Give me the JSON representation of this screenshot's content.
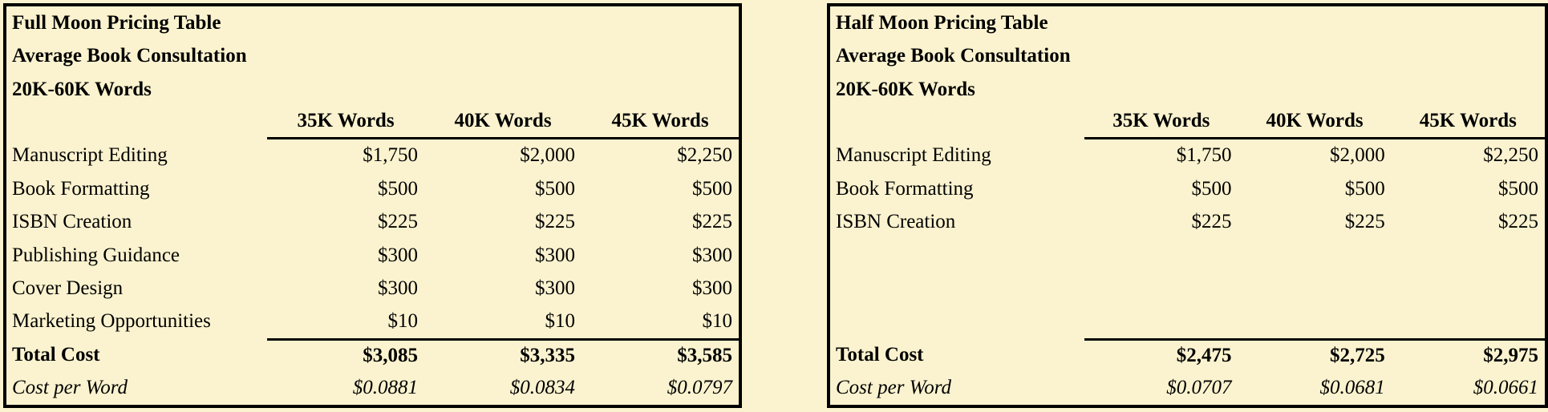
{
  "colors": {
    "background": "#FBF3CF",
    "border": "#000000",
    "text": "#000000"
  },
  "tables": [
    {
      "title": "Full Moon Pricing Table",
      "subtitle": "Average Book Consultation",
      "word_range": "20K-60K Words",
      "columns": [
        "35K Words",
        "40K Words",
        "45K Words"
      ],
      "rows": [
        {
          "label": "Manuscript Editing",
          "values": [
            "$1,750",
            "$2,000",
            "$2,250"
          ]
        },
        {
          "label": "Book Formatting",
          "values": [
            "$500",
            "$500",
            "$500"
          ]
        },
        {
          "label": "ISBN Creation",
          "values": [
            "$225",
            "$225",
            "$225"
          ]
        },
        {
          "label": "Publishing Guidance",
          "values": [
            "$300",
            "$300",
            "$300"
          ]
        },
        {
          "label": "Cover Design",
          "values": [
            "$300",
            "$300",
            "$300"
          ]
        },
        {
          "label": "Marketing Opportunities",
          "values": [
            "$10",
            "$10",
            "$10"
          ]
        }
      ],
      "total": {
        "label": "Total Cost",
        "values": [
          "$3,085",
          "$3,335",
          "$3,585"
        ]
      },
      "cost_per_word": {
        "label": "Cost per Word",
        "values": [
          "$0.0881",
          "$0.0834",
          "$0.0797"
        ]
      }
    },
    {
      "title": "Half Moon Pricing Table",
      "subtitle": "Average Book Consultation",
      "word_range": "20K-60K Words",
      "columns": [
        "35K Words",
        "40K Words",
        "45K Words"
      ],
      "rows": [
        {
          "label": "Manuscript Editing",
          "values": [
            "$1,750",
            "$2,000",
            "$2,250"
          ]
        },
        {
          "label": "Book Formatting",
          "values": [
            "$500",
            "$500",
            "$500"
          ]
        },
        {
          "label": "ISBN Creation",
          "values": [
            "$225",
            "$225",
            "$225"
          ]
        }
      ],
      "total": {
        "label": "Total Cost",
        "values": [
          "$2,475",
          "$2,725",
          "$2,975"
        ]
      },
      "cost_per_word": {
        "label": "Cost per Word",
        "values": [
          "$0.0707",
          "$0.0681",
          "$0.0661"
        ]
      }
    }
  ]
}
